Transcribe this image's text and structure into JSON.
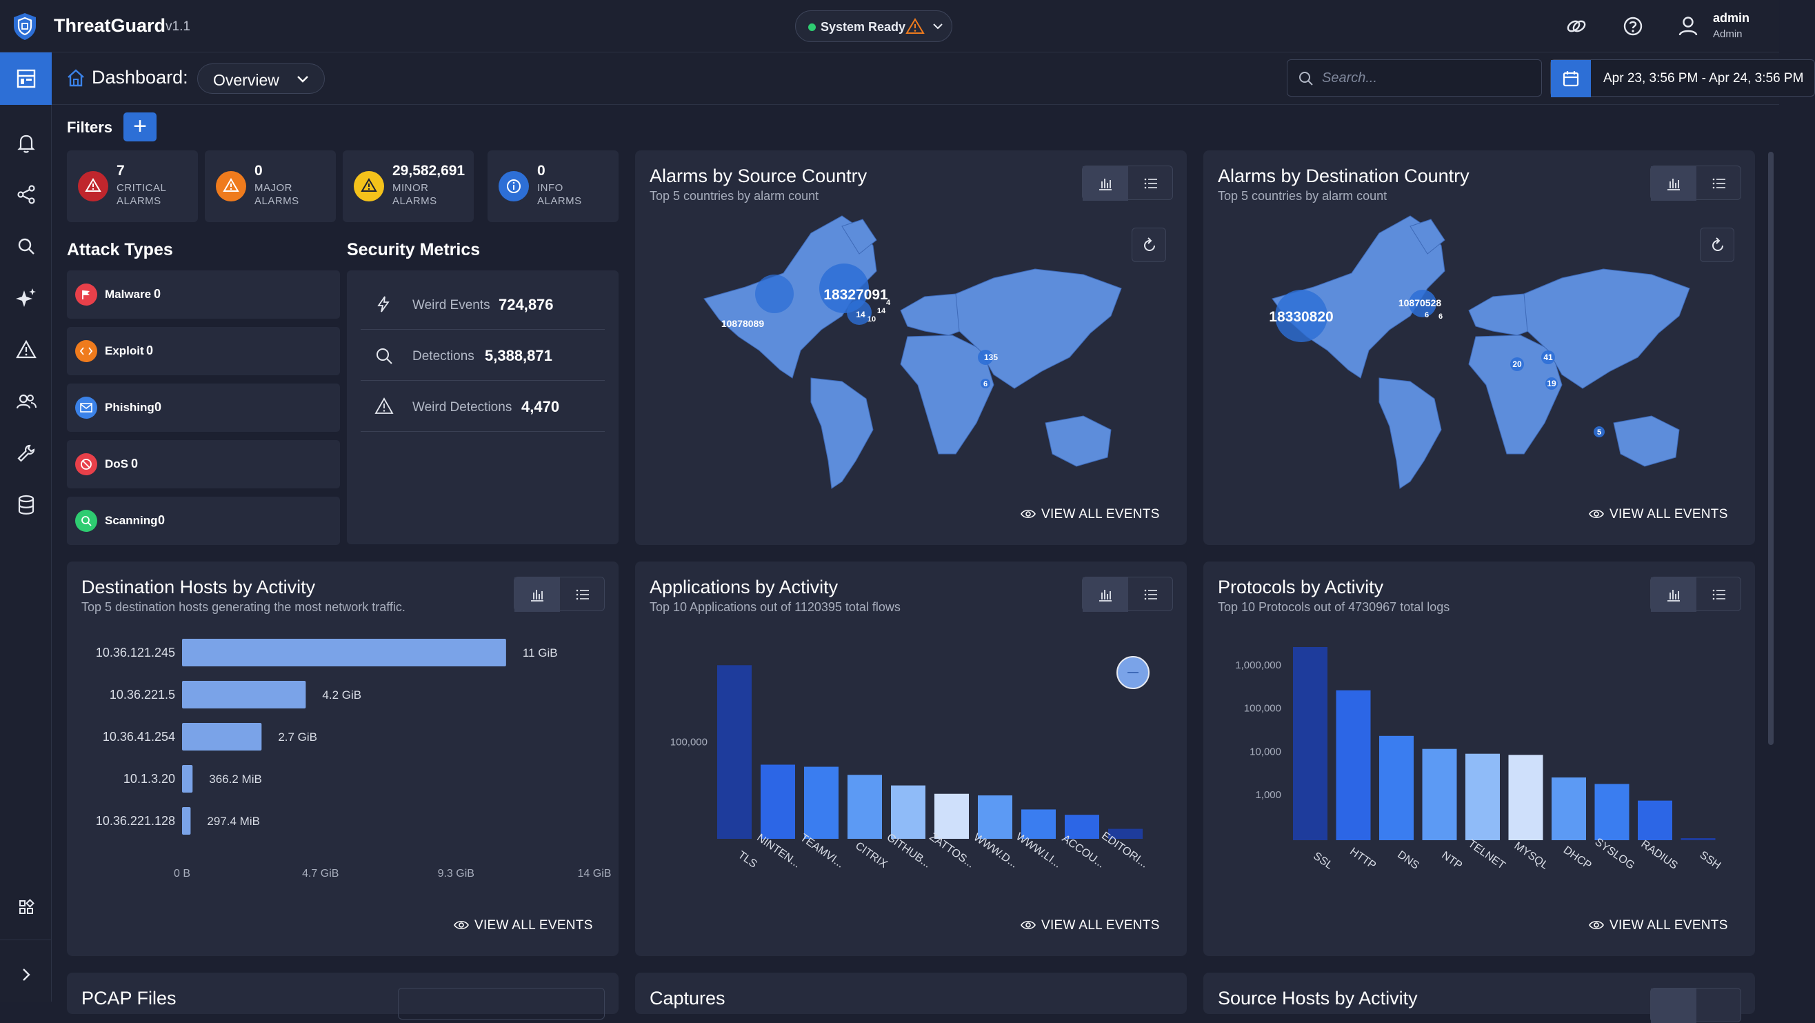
{
  "app": {
    "title": "ThreatGuard",
    "version": "v1.1"
  },
  "status": {
    "text": "System Ready"
  },
  "user": {
    "name": "admin",
    "role": "Admin"
  },
  "dashboard": {
    "title": "Dashboard:",
    "view": "Overview"
  },
  "search": {
    "placeholder": "Search..."
  },
  "date_range": "Apr 23, 3:56 PM - Apr 24, 3:56 PM",
  "filters": {
    "label": "Filters",
    "add": "+"
  },
  "alarms": [
    {
      "count": "7",
      "label1": "CRITICAL",
      "label2": "ALARMS",
      "color": "#c0262d"
    },
    {
      "count": "0",
      "label1": "MAJOR",
      "label2": "ALARMS",
      "color": "#ef7b1d"
    },
    {
      "count": "29,582,691",
      "label1": "MINOR",
      "label2": "ALARMS",
      "color": "#f4c21b"
    },
    {
      "count": "0",
      "label1": "INFO",
      "label2": "ALARMS",
      "color": "#2d6fd6"
    }
  ],
  "attack_types": {
    "title": "Attack Types",
    "items": [
      {
        "label": "Malware",
        "count": "0",
        "color": "#e8404a",
        "icon": "flag-icon"
      },
      {
        "label": "Exploit",
        "count": "0",
        "color": "#ef7b1d",
        "icon": "code-icon"
      },
      {
        "label": "Phishing",
        "count": "0",
        "color": "#3b82e8",
        "icon": "mail-icon"
      },
      {
        "label": "DoS",
        "count": "0",
        "color": "#e8404a",
        "icon": "ban-icon"
      },
      {
        "label": "Scanning",
        "count": "0",
        "color": "#2ecc71",
        "icon": "scan-icon"
      }
    ]
  },
  "security_metrics": {
    "title": "Security Metrics",
    "items": [
      {
        "label": "Weird Events",
        "value": "724,876",
        "icon": "bolt-icon"
      },
      {
        "label": "Detections",
        "value": "5,388,871",
        "icon": "search-icon"
      },
      {
        "label": "Weird Detections",
        "value": "4,470",
        "icon": "warning-icon"
      }
    ]
  },
  "source_country": {
    "title": "Alarms by Source Country",
    "subtitle": "Top 5 countries by alarm count",
    "bubbles": [
      "18327091",
      "10878089",
      "14",
      "4",
      "14",
      "10",
      "135",
      "6"
    ],
    "view_all": "VIEW ALL EVENTS"
  },
  "dest_country": {
    "title": "Alarms by Destination Country",
    "subtitle": "Top 5 countries by alarm count",
    "bubbles": [
      "18330820",
      "10870528",
      "6",
      "6",
      "20",
      "41",
      "19",
      "5"
    ],
    "view_all": "VIEW ALL EVENTS"
  },
  "dest_hosts": {
    "title": "Destination Hosts by Activity",
    "subtitle": "Top 5 destination hosts generating the most network traffic.",
    "view_all": "VIEW ALL EVENTS"
  },
  "applications": {
    "title": "Applications by Activity",
    "subtitle": "Top 10 Applications out of 1120395 total flows",
    "view_all": "VIEW ALL EVENTS"
  },
  "protocols": {
    "title": "Protocols by Activity",
    "subtitle": "Top 10 Protocols out of 4730967 total logs",
    "view_all": "VIEW ALL EVENTS"
  },
  "bottom_panels": [
    "PCAP Files",
    "Captures",
    "Source Hosts by Activity"
  ],
  "chart_data": [
    {
      "type": "bar",
      "orientation": "horizontal",
      "categories": [
        "10.36.121.245",
        "10.36.221.5",
        "10.36.41.254",
        "10.1.3.20",
        "10.36.221.128"
      ],
      "values_gib": [
        11,
        4.2,
        2.7,
        0.3577,
        0.2904
      ],
      "value_labels": [
        "11 GiB",
        "4.2 GiB",
        "2.7 GiB",
        "366.2 MiB",
        "297.4 MiB"
      ],
      "x_ticks": [
        "0 B",
        "4.7 GiB",
        "9.3 GiB",
        "14 GiB"
      ],
      "xlim": [
        0,
        14
      ]
    },
    {
      "type": "bar",
      "categories": [
        "TLS",
        "NINTEN...",
        "TEAMVI...",
        "CITRIX",
        "GITHUB...",
        "ZATTOS...",
        "WWW.D...",
        "WWW.LI...",
        "ACCOU...",
        "EDITORI..."
      ],
      "values": [
        900000,
        51000,
        48000,
        38000,
        28000,
        22000,
        21000,
        14000,
        12000,
        8000
      ],
      "colors": [
        "#1e3c9c",
        "#2c66e6",
        "#3a7df0",
        "#5c9af4",
        "#8fbbf8",
        "#cfe0fb",
        "#5c9af4",
        "#3a7df0",
        "#2c66e6",
        "#1e3c9c"
      ],
      "y_ticks": [
        "100,000"
      ],
      "yscale": "log"
    },
    {
      "type": "bar",
      "categories": [
        "SSL",
        "HTTP",
        "DNS",
        "NTP",
        "TELNET",
        "MYSQL",
        "DHCP",
        "SYSLOG",
        "RADIUS",
        "SSH"
      ],
      "values": [
        2500000,
        250000,
        22000,
        11000,
        8500,
        8000,
        2400,
        1700,
        700,
        1
      ],
      "colors": [
        "#1e3c9c",
        "#2c66e6",
        "#3a7df0",
        "#5c9af4",
        "#8fbbf8",
        "#cfe0fb",
        "#5c9af4",
        "#3a7df0",
        "#2c66e6",
        "#1e3c9c"
      ],
      "y_ticks": [
        "1,000,000",
        "100,000",
        "10,000",
        "1,000"
      ],
      "yscale": "log"
    }
  ]
}
